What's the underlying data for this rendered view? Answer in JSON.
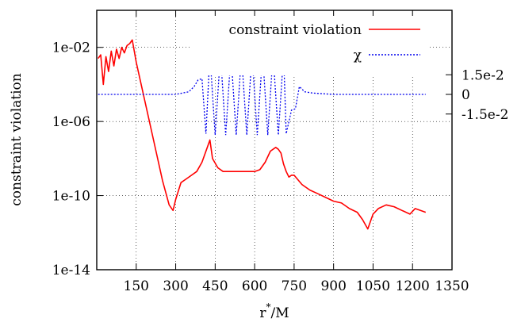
{
  "chart_data": {
    "type": "line",
    "xlabel_base": "r",
    "xlabel_sup": "*",
    "xlabel_rest": "/M",
    "ylabel": "constraint violation",
    "xlim": [
      0,
      1350
    ],
    "ylim_log10": [
      -14,
      0
    ],
    "y2lim": [
      -0.06,
      0.06
    ],
    "y2_scale_note": "χ series occupies the upper band of the frame",
    "x_ticks": [
      150,
      300,
      450,
      600,
      750,
      900,
      1050,
      1200,
      1350
    ],
    "x_tick_labels": [
      "150",
      "300",
      "450",
      "600",
      "750",
      "900",
      "1050",
      "1200",
      "1350"
    ],
    "y_ticks_log10": [
      -2,
      -6,
      -10,
      -14
    ],
    "y_tick_labels": [
      "1e-02",
      "1e-06",
      "1e-10",
      "1e-14"
    ],
    "y2_ticks": [
      0.015,
      0,
      -0.015
    ],
    "y2_tick_labels": [
      "1.5e-2",
      "0",
      "-1.5e-2"
    ],
    "grid": true,
    "legend_position": "top-right",
    "series": [
      {
        "name": "constraint violation",
        "color": "#ff0000",
        "style": "solid",
        "axis": "left-log",
        "x": [
          5,
          15,
          25,
          35,
          45,
          55,
          65,
          75,
          85,
          95,
          105,
          115,
          125,
          135,
          150,
          175,
          200,
          225,
          250,
          275,
          290,
          300,
          320,
          340,
          360,
          380,
          400,
          420,
          430,
          440,
          460,
          480,
          500,
          520,
          540,
          560,
          580,
          600,
          620,
          640,
          660,
          680,
          690,
          700,
          710,
          720,
          730,
          740,
          750,
          780,
          810,
          840,
          870,
          900,
          930,
          960,
          990,
          1010,
          1030,
          1050,
          1070,
          1100,
          1130,
          1160,
          1190,
          1210,
          1230,
          1250
        ],
        "y_log10": [
          -2.6,
          -2.4,
          -4.0,
          -2.5,
          -3.3,
          -2.2,
          -3.0,
          -2.1,
          -2.6,
          -2.0,
          -2.3,
          -1.9,
          -1.8,
          -1.6,
          -2.8,
          -4.4,
          -6.0,
          -7.6,
          -9.2,
          -10.5,
          -10.8,
          -10.2,
          -9.3,
          -9.1,
          -8.9,
          -8.7,
          -8.2,
          -7.4,
          -7.0,
          -8.0,
          -8.5,
          -8.7,
          -8.7,
          -8.7,
          -8.7,
          -8.7,
          -8.7,
          -8.7,
          -8.6,
          -8.2,
          -7.6,
          -7.4,
          -7.5,
          -7.7,
          -8.3,
          -8.7,
          -9.0,
          -8.9,
          -8.9,
          -9.4,
          -9.7,
          -9.9,
          -10.1,
          -10.3,
          -10.4,
          -10.7,
          -10.9,
          -11.3,
          -11.8,
          -11.0,
          -10.7,
          -10.5,
          -10.6,
          -10.8,
          -11.0,
          -10.7,
          -10.8,
          -10.9
        ]
      },
      {
        "name": "χ",
        "color": "#0000ee",
        "style": "dotted",
        "axis": "right-linear",
        "x": [
          5,
          100,
          200,
          300,
          350,
          370,
          385,
          400,
          415,
          430,
          450,
          470,
          490,
          510,
          530,
          550,
          570,
          590,
          610,
          630,
          650,
          670,
          690,
          710,
          720,
          740,
          755,
          770,
          790,
          820,
          900,
          1000,
          1100,
          1200,
          1250
        ],
        "y": [
          0,
          0,
          0,
          0,
          0.002,
          0.006,
          0.011,
          0.012,
          -0.03,
          0.031,
          -0.031,
          0.031,
          -0.031,
          0.031,
          -0.031,
          0.031,
          -0.031,
          0.031,
          -0.031,
          0.031,
          -0.031,
          0.031,
          -0.031,
          0.031,
          -0.03,
          -0.012,
          -0.011,
          0.006,
          0.002,
          0.001,
          0,
          0,
          0,
          0,
          0
        ]
      }
    ]
  }
}
